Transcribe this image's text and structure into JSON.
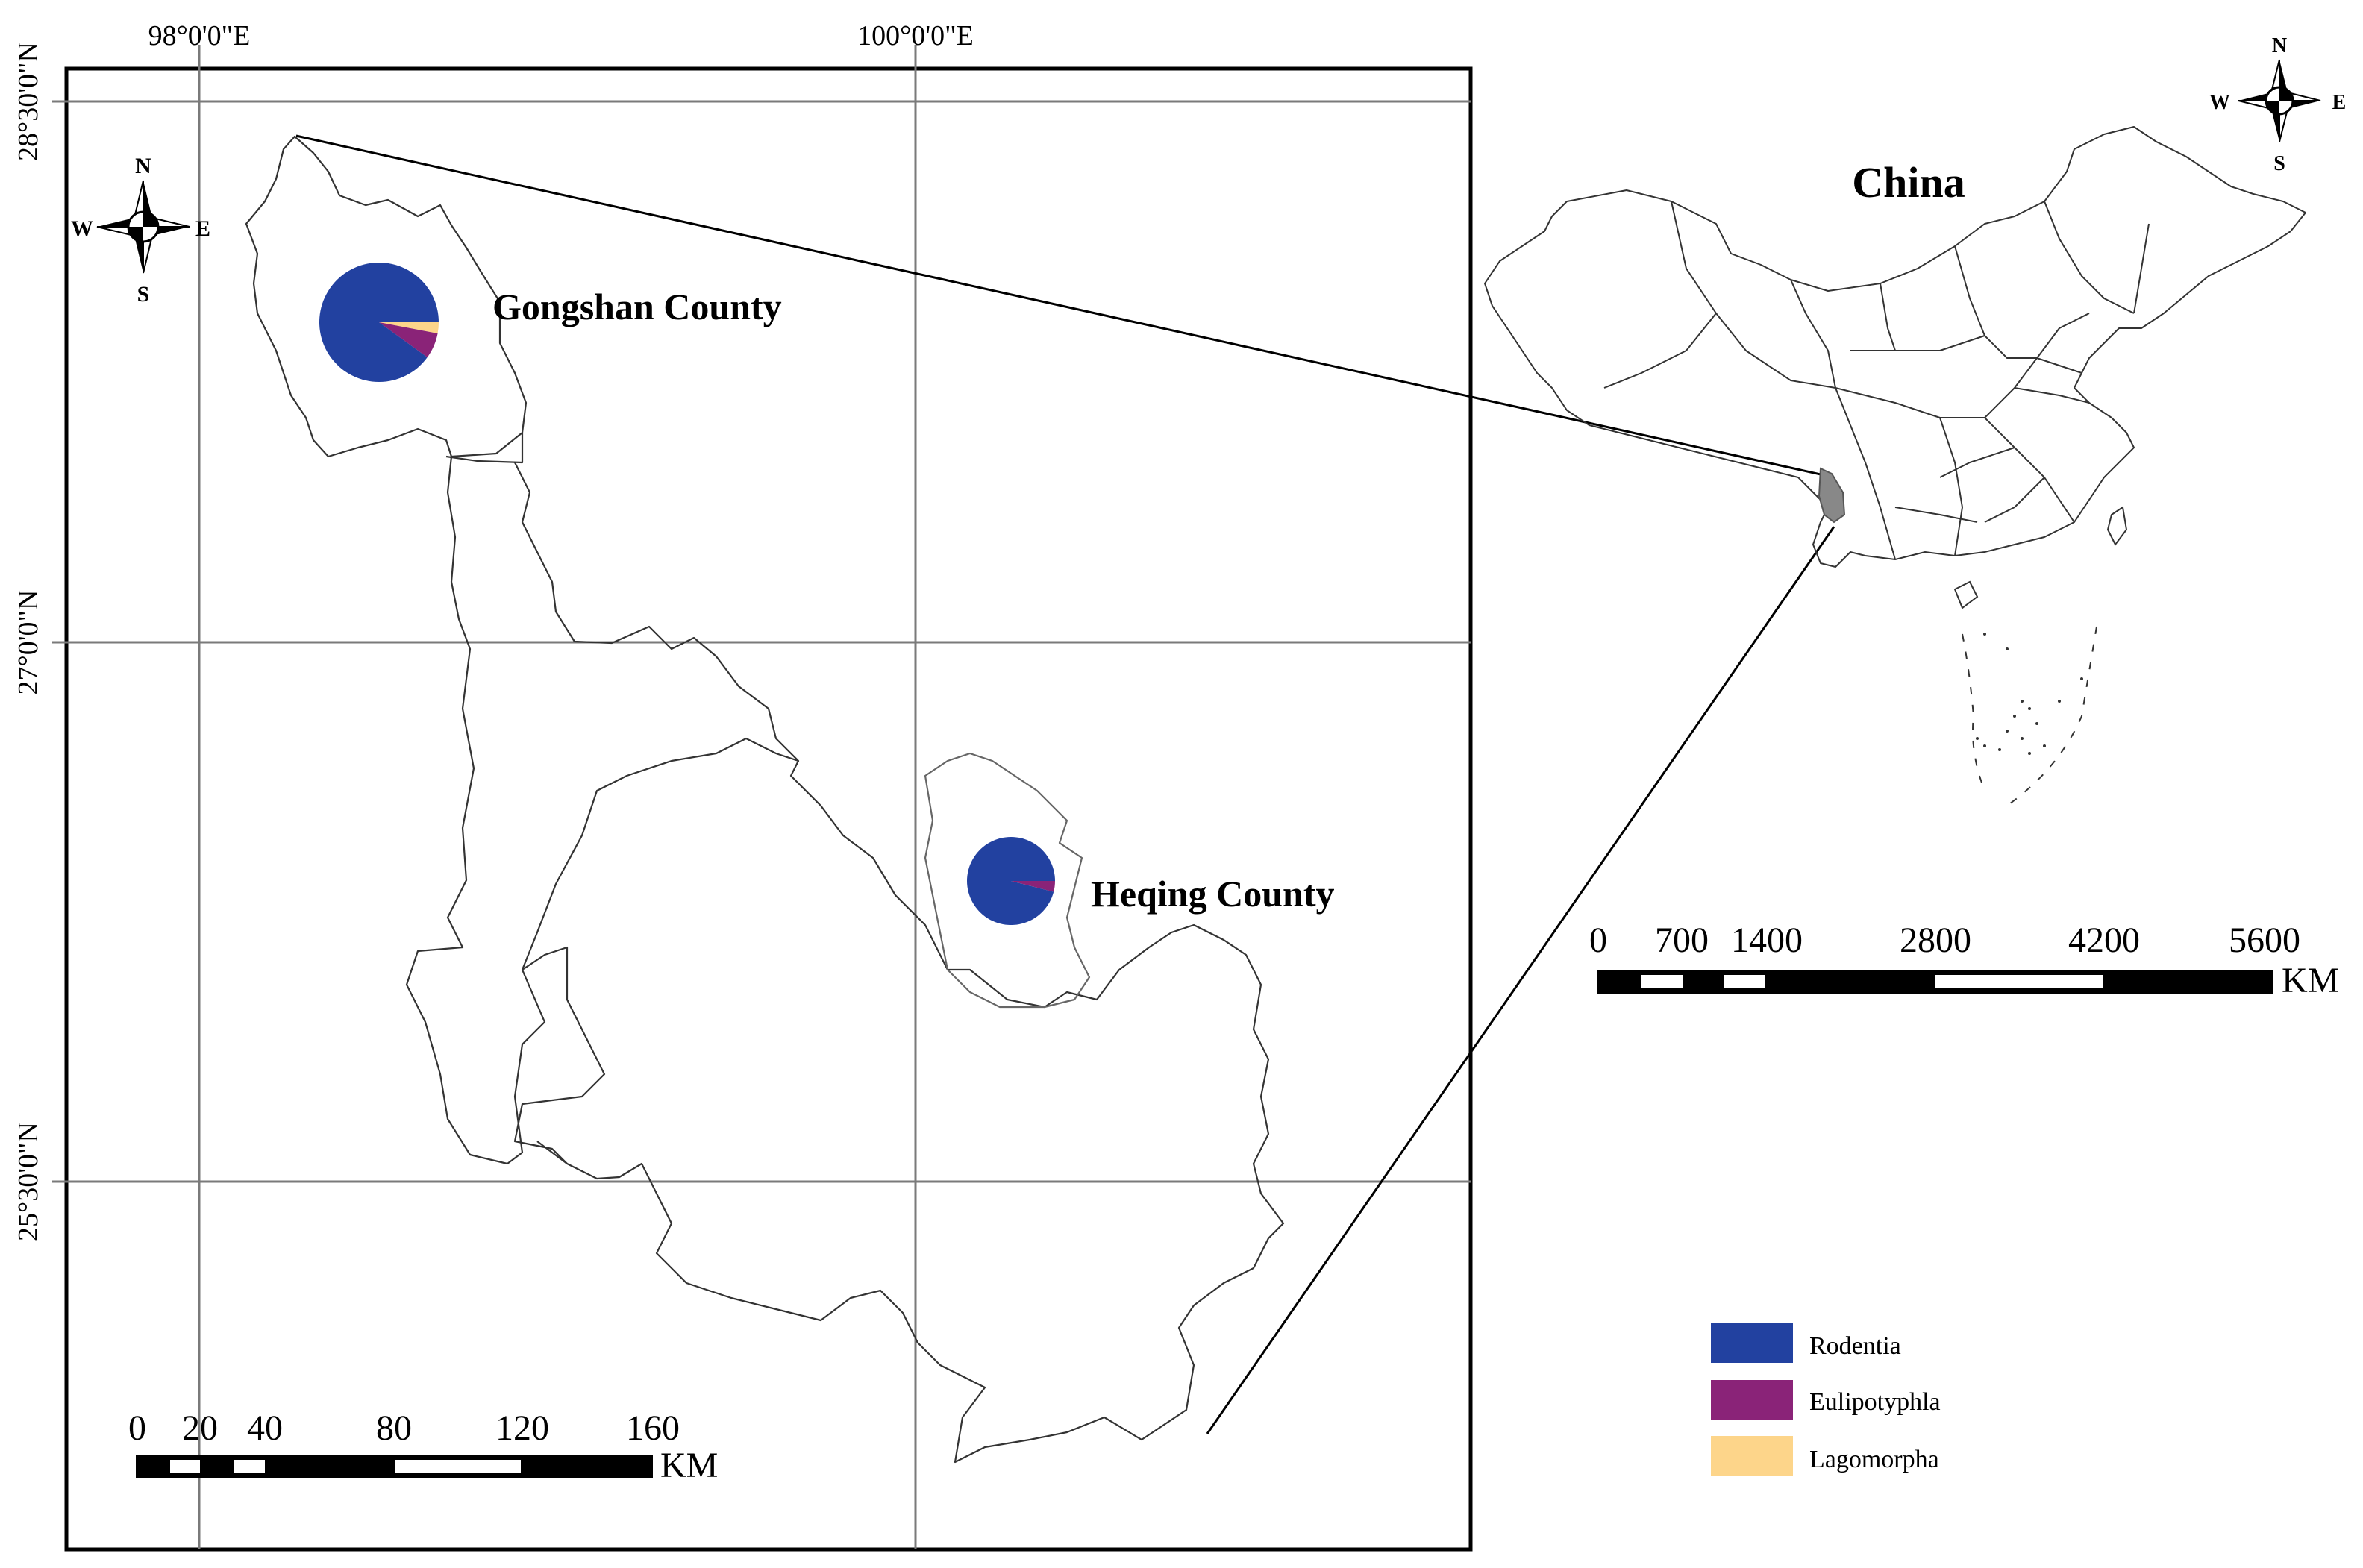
{
  "main_map": {
    "lon_labels": [
      "98°0'0\"E",
      "100°0'0\"E"
    ],
    "lat_labels": [
      "28°30'0\"N",
      "27°0'0\"N",
      "25°30'0\"N"
    ],
    "places": [
      {
        "name": "Gongshan County",
        "pie": [
          {
            "group": "Rodentia",
            "share": 0.9
          },
          {
            "group": "Eulipotyphla",
            "share": 0.07
          },
          {
            "group": "Lagomorpha",
            "share": 0.03
          }
        ]
      },
      {
        "name": "Heqing County",
        "pie": [
          {
            "group": "Rodentia",
            "share": 0.96
          },
          {
            "group": "Eulipotyphla",
            "share": 0.04
          }
        ]
      }
    ],
    "scale_bar": {
      "ticks": [
        "0",
        "20",
        "40",
        "80",
        "120",
        "160"
      ],
      "unit": "KM"
    },
    "north_arrow": {
      "n": "N",
      "s": "S",
      "e": "E",
      "w": "W"
    }
  },
  "inset_map": {
    "title": "China",
    "scale_bar": {
      "ticks": [
        "0",
        "700",
        "1400",
        "2800",
        "4200",
        "5600"
      ],
      "unit": "KM"
    },
    "north_arrow": {
      "n": "N",
      "s": "S",
      "e": "E",
      "w": "W"
    }
  },
  "legend": {
    "items": [
      {
        "label": "Rodentia",
        "color": "#2241a0"
      },
      {
        "label": "Eulipotyphla",
        "color": "#8a2378"
      },
      {
        "label": "Lagomorpha",
        "color": "#fdd58a"
      }
    ]
  }
}
